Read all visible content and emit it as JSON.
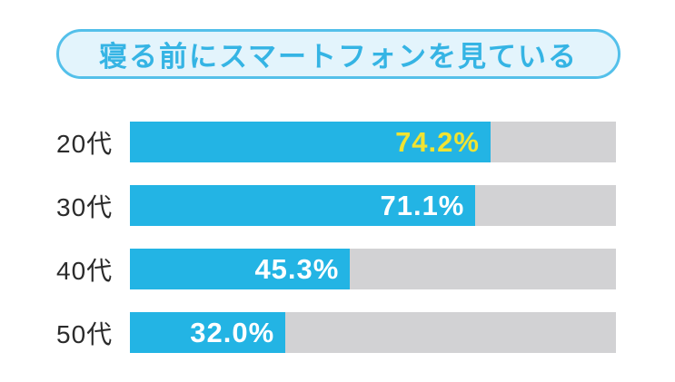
{
  "page": {
    "background": "#ffffff"
  },
  "title": {
    "text": "寝る前にスマートフォンを見ている",
    "text_color": "#35b4e4",
    "background": "#e3f4fc",
    "border_color": "#54c0ea"
  },
  "chart_data": {
    "type": "bar",
    "orientation": "horizontal",
    "title": "寝る前にスマートフォンを見ている",
    "categories": [
      "20代",
      "30代",
      "40代",
      "50代"
    ],
    "values": [
      74.2,
      71.1,
      45.3,
      32.0
    ],
    "value_labels": [
      "74.2%",
      "71.1%",
      "45.3%",
      "32.0%"
    ],
    "value_label_colors": [
      "#f0e331",
      "#ffffff",
      "#ffffff",
      "#ffffff"
    ],
    "xlabel": "",
    "ylabel": "",
    "xlim": [
      0,
      100
    ],
    "grid": false,
    "legend_position": "none",
    "bar_color": "#23b4e4",
    "track_color": "#d2d2d4",
    "category_label_color": "#2b2b2b"
  }
}
